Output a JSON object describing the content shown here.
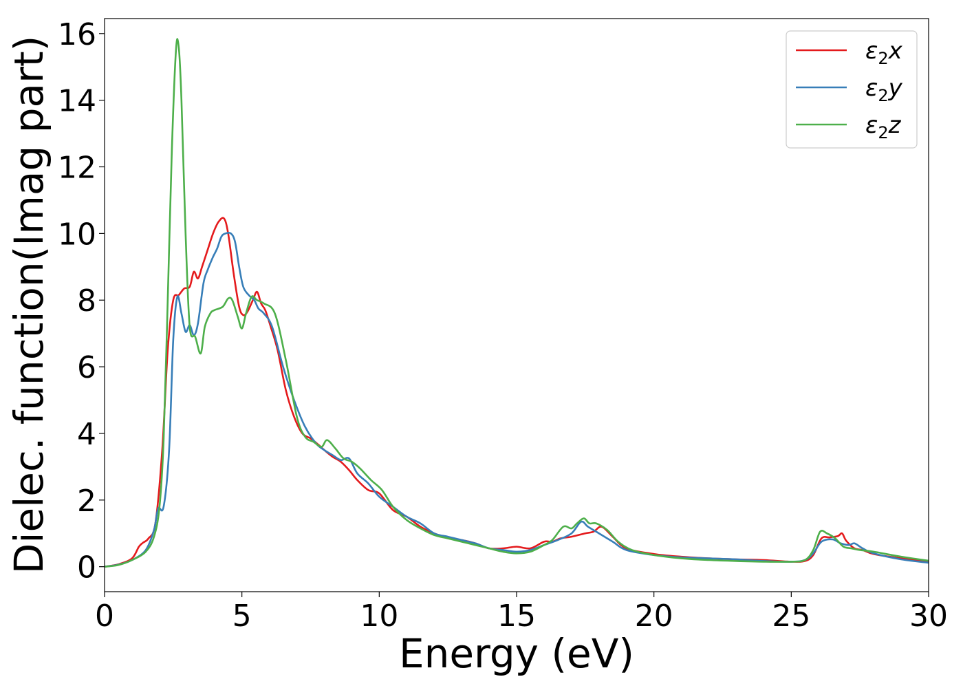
{
  "chart_data": {
    "type": "line",
    "xlabel": "Energy (eV)",
    "ylabel": "Dielec. function(Imag part)",
    "xlim": [
      0,
      30
    ],
    "ylim": [
      -0.75,
      16.45
    ],
    "xticks": [
      0,
      5,
      10,
      15,
      20,
      25,
      30
    ],
    "yticks": [
      0,
      2,
      4,
      6,
      8,
      10,
      12,
      14,
      16
    ],
    "grid": false,
    "legend_position": "top-right",
    "series": [
      {
        "name": "ε2x",
        "legend_base": "ε",
        "legend_sub": "2",
        "legend_var": "x",
        "color": "#e41a1c",
        "x": [
          0,
          0.5,
          1.0,
          1.25,
          1.4,
          1.6,
          1.85,
          2.1,
          2.3,
          2.5,
          2.7,
          2.9,
          3.1,
          3.25,
          3.4,
          3.55,
          3.75,
          3.95,
          4.15,
          4.35,
          4.5,
          4.7,
          4.9,
          5.05,
          5.2,
          5.4,
          5.55,
          5.7,
          5.85,
          6.05,
          6.3,
          6.6,
          6.9,
          7.2,
          7.5,
          7.8,
          8.0,
          8.3,
          8.6,
          8.9,
          9.2,
          9.6,
          10,
          10.5,
          11,
          11.5,
          12,
          12.5,
          13,
          13.5,
          14,
          14.5,
          15,
          15.5,
          16,
          16.3,
          16.6,
          17,
          17.5,
          17.8,
          18.1,
          18.5,
          19,
          20,
          21,
          22,
          23,
          24,
          25,
          25.5,
          25.8,
          26.1,
          26.4,
          26.7,
          26.85,
          27.0,
          27.3,
          27.6,
          28,
          29,
          30
        ],
        "y": [
          0,
          0.07,
          0.25,
          0.6,
          0.72,
          0.85,
          1.3,
          3.5,
          6.5,
          8.0,
          8.15,
          8.35,
          8.4,
          8.85,
          8.65,
          9.0,
          9.5,
          10.0,
          10.35,
          10.45,
          10.0,
          8.8,
          7.8,
          7.55,
          7.65,
          8.0,
          8.25,
          7.9,
          7.7,
          7.2,
          6.5,
          5.3,
          4.5,
          4.0,
          3.85,
          3.65,
          3.5,
          3.3,
          3.15,
          2.9,
          2.6,
          2.3,
          2.2,
          1.7,
          1.5,
          1.2,
          1.0,
          0.85,
          0.8,
          0.7,
          0.55,
          0.55,
          0.6,
          0.55,
          0.75,
          0.75,
          0.85,
          0.9,
          1.0,
          1.05,
          1.2,
          0.9,
          0.55,
          0.38,
          0.3,
          0.25,
          0.22,
          0.2,
          0.15,
          0.17,
          0.35,
          0.85,
          0.88,
          0.92,
          1.0,
          0.78,
          0.55,
          0.5,
          0.38,
          0.25,
          0.15
        ]
      },
      {
        "name": "ε2y",
        "legend_base": "ε",
        "legend_sub": "2",
        "legend_var": "y",
        "color": "#377eb8",
        "x": [
          0,
          0.5,
          1.0,
          1.5,
          1.8,
          1.95,
          2.15,
          2.35,
          2.5,
          2.65,
          2.8,
          2.95,
          3.1,
          3.25,
          3.4,
          3.6,
          3.75,
          3.95,
          4.1,
          4.25,
          4.4,
          4.6,
          4.75,
          4.9,
          5.05,
          5.25,
          5.45,
          5.6,
          5.8,
          6.1,
          6.5,
          6.9,
          7.3,
          7.7,
          8.0,
          8.3,
          8.6,
          8.9,
          9.2,
          9.6,
          10,
          10.5,
          11,
          11.5,
          12,
          12.5,
          13,
          13.5,
          14,
          14.5,
          15,
          15.5,
          16,
          16.5,
          17,
          17.35,
          17.6,
          18,
          18.5,
          19,
          20,
          21,
          22,
          23,
          24,
          25,
          25.5,
          25.8,
          26.1,
          26.5,
          26.8,
          27.1,
          27.3,
          27.6,
          28,
          29,
          30
        ],
        "y": [
          0,
          0.06,
          0.2,
          0.5,
          1.1,
          1.75,
          1.8,
          3.5,
          6.8,
          8.1,
          7.6,
          7.05,
          7.25,
          6.95,
          7.3,
          8.5,
          8.9,
          9.3,
          9.55,
          9.9,
          10.0,
          10.0,
          9.75,
          9.0,
          8.4,
          8.15,
          8.0,
          7.75,
          7.6,
          7.2,
          6.0,
          5.0,
          4.2,
          3.7,
          3.5,
          3.35,
          3.2,
          3.25,
          2.8,
          2.5,
          2.1,
          1.8,
          1.5,
          1.3,
          1.0,
          0.9,
          0.8,
          0.7,
          0.55,
          0.5,
          0.45,
          0.5,
          0.65,
          0.8,
          1.0,
          1.35,
          1.2,
          1.0,
          0.75,
          0.5,
          0.35,
          0.28,
          0.25,
          0.22,
          0.17,
          0.15,
          0.2,
          0.4,
          0.75,
          0.82,
          0.7,
          0.65,
          0.7,
          0.55,
          0.4,
          0.22,
          0.12
        ]
      },
      {
        "name": "ε2z",
        "legend_base": "ε",
        "legend_sub": "2",
        "legend_var": "z",
        "color": "#4daf4a",
        "x": [
          0,
          0.5,
          1.0,
          1.5,
          1.8,
          2.0,
          2.15,
          2.3,
          2.45,
          2.6,
          2.7,
          2.8,
          2.95,
          3.1,
          3.3,
          3.5,
          3.65,
          3.85,
          4.0,
          4.3,
          4.5,
          4.65,
          4.85,
          5.0,
          5.15,
          5.35,
          5.55,
          5.8,
          6.2,
          6.6,
          7.0,
          7.3,
          7.6,
          7.9,
          8.1,
          8.4,
          8.7,
          9.0,
          9.3,
          9.7,
          10.1,
          10.5,
          11,
          11.5,
          12,
          12.5,
          13,
          13.5,
          14,
          14.5,
          15,
          15.5,
          16,
          16.3,
          16.7,
          17.0,
          17.2,
          17.45,
          17.65,
          17.9,
          18.3,
          18.7,
          19.2,
          20,
          21,
          22,
          23,
          24,
          25,
          25.5,
          25.8,
          26.05,
          26.3,
          26.6,
          26.9,
          27.2,
          27.5,
          28,
          29,
          30
        ],
        "y": [
          0,
          0.05,
          0.2,
          0.45,
          0.9,
          1.8,
          3.8,
          8.0,
          12.5,
          15.5,
          15.6,
          14.0,
          10.0,
          7.2,
          6.9,
          6.4,
          7.2,
          7.6,
          7.7,
          7.8,
          8.05,
          8.0,
          7.5,
          7.15,
          7.6,
          8.1,
          8.0,
          7.9,
          7.6,
          6.2,
          4.5,
          3.9,
          3.75,
          3.6,
          3.8,
          3.55,
          3.25,
          3.15,
          2.95,
          2.6,
          2.3,
          1.8,
          1.4,
          1.15,
          0.95,
          0.85,
          0.75,
          0.65,
          0.55,
          0.45,
          0.4,
          0.45,
          0.65,
          0.8,
          1.2,
          1.15,
          1.3,
          1.45,
          1.3,
          1.3,
          1.1,
          0.75,
          0.5,
          0.35,
          0.25,
          0.2,
          0.17,
          0.15,
          0.15,
          0.2,
          0.5,
          1.05,
          1.0,
          0.85,
          0.6,
          0.55,
          0.5,
          0.45,
          0.3,
          0.18
        ]
      }
    ]
  }
}
